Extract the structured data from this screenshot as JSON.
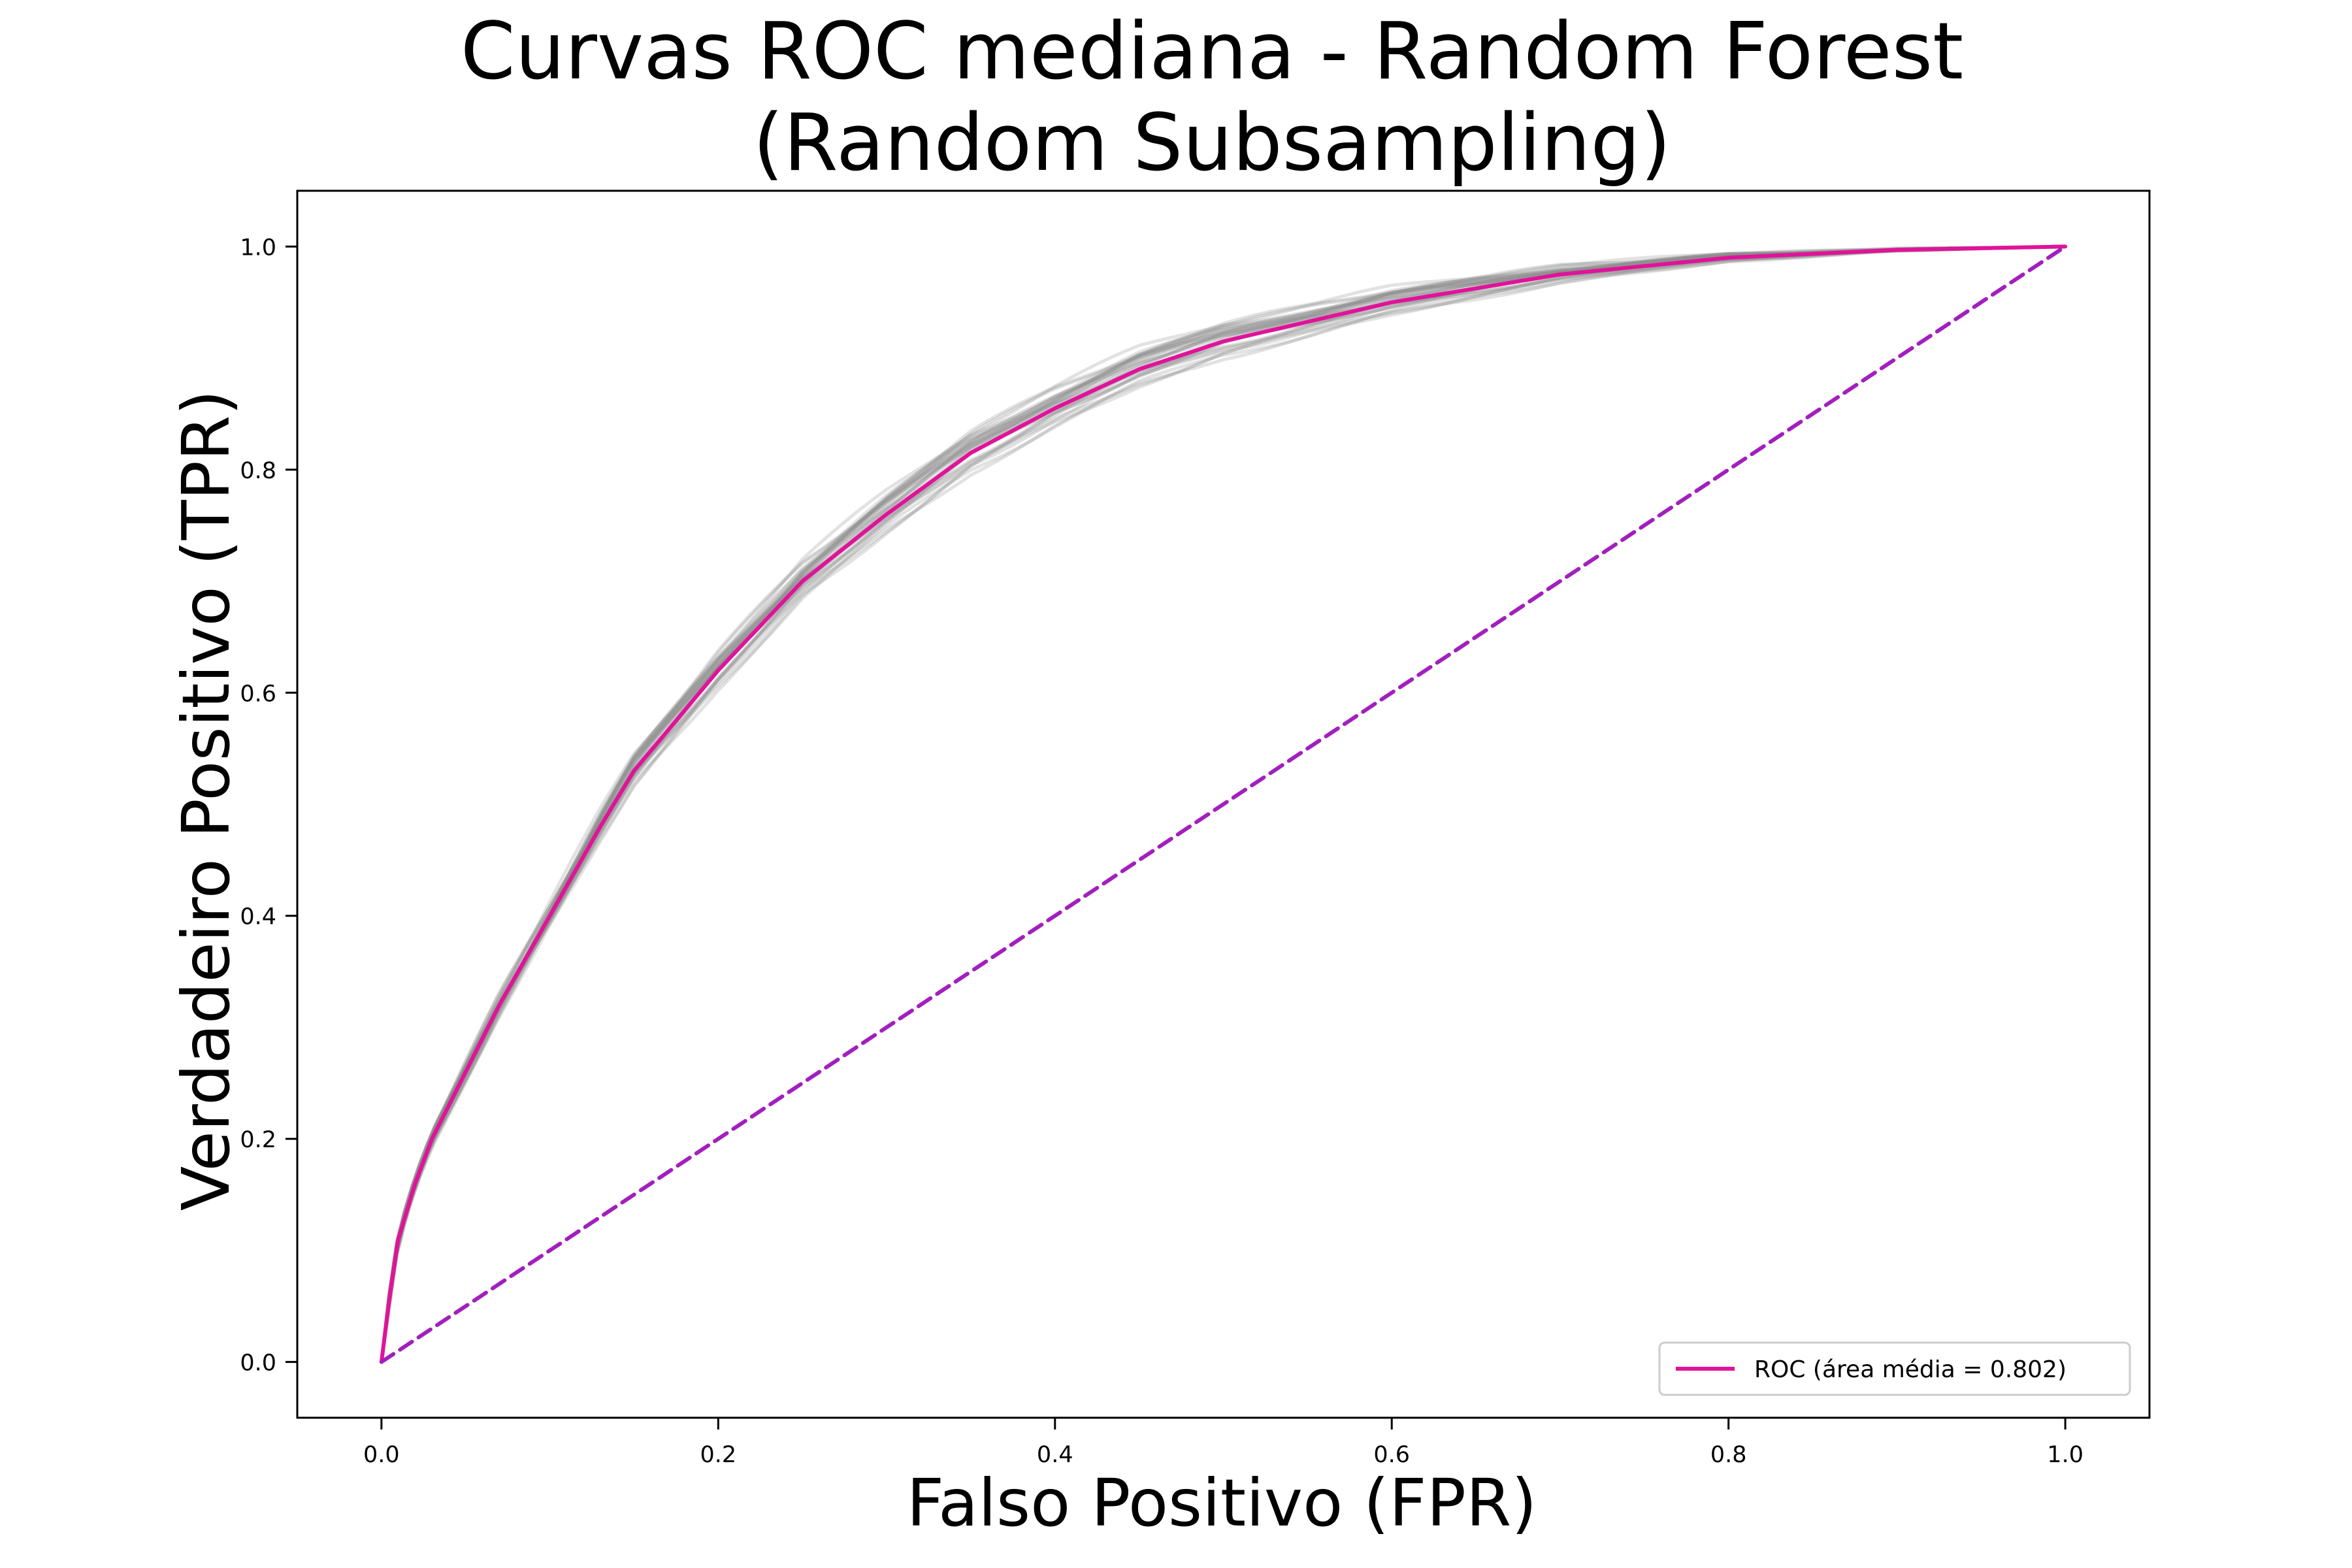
{
  "chart_data": {
    "type": "line",
    "title_lines": [
      "Curvas ROC mediana - Random Forest",
      "(Random Subsampling)"
    ],
    "xlabel": "Falso Positivo (FPR)",
    "ylabel": "Verdadeiro Positivo (TPR)",
    "xlim": [
      -0.05,
      1.05
    ],
    "ylim": [
      -0.05,
      1.05
    ],
    "x_ticks": [
      0.0,
      0.2,
      0.4,
      0.6,
      0.8,
      1.0
    ],
    "y_ticks": [
      0.0,
      0.2,
      0.4,
      0.6,
      0.8,
      1.0
    ],
    "x_tick_labels": [
      "0.0",
      "0.2",
      "0.4",
      "0.6",
      "0.8",
      "1.0"
    ],
    "y_tick_labels": [
      "0.0",
      "0.2",
      "0.4",
      "0.6",
      "0.8",
      "1.0"
    ],
    "grid": false,
    "legend_position": "lower-right",
    "series": [
      {
        "name": "ROC (área média = 0.802)",
        "color": "#e0139a",
        "style": "solid",
        "x": [
          0.0,
          0.005,
          0.01,
          0.02,
          0.03,
          0.05,
          0.07,
          0.1,
          0.13,
          0.15,
          0.2,
          0.25,
          0.3,
          0.35,
          0.4,
          0.45,
          0.5,
          0.6,
          0.7,
          0.8,
          0.9,
          1.0
        ],
        "y": [
          0.0,
          0.06,
          0.11,
          0.16,
          0.2,
          0.26,
          0.32,
          0.4,
          0.48,
          0.53,
          0.62,
          0.7,
          0.76,
          0.815,
          0.855,
          0.89,
          0.915,
          0.95,
          0.975,
          0.99,
          0.997,
          1.0
        ]
      },
      {
        "name": "",
        "color": "#a21fbe",
        "style": "dashed",
        "x": [
          0.0,
          1.0
        ],
        "y": [
          0.0,
          1.0
        ]
      }
    ],
    "background_curves": {
      "color": "#8c8c8c",
      "count": 30,
      "base": "ROC"
    }
  }
}
